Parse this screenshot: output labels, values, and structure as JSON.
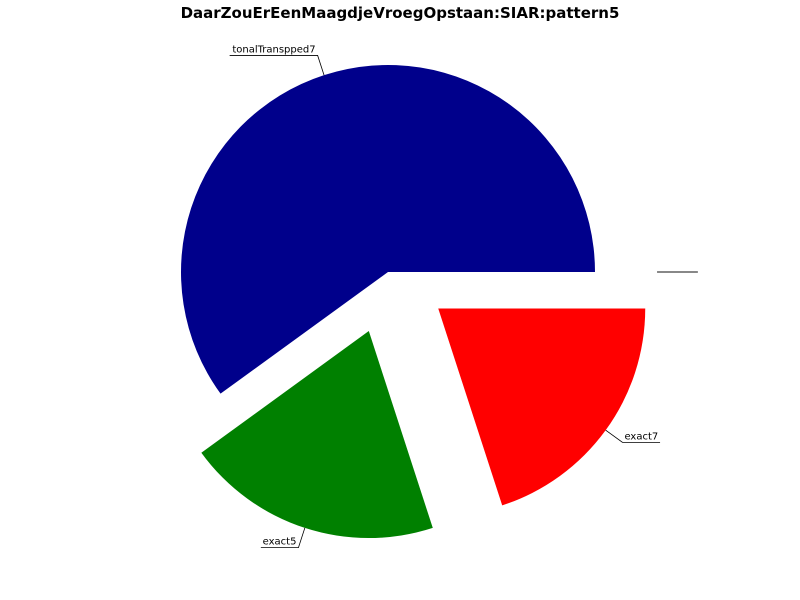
{
  "chart_data": {
    "type": "pie",
    "title": "DaarZouErEenMaagdjeVroegOpstaan:SIAR:pattern5",
    "slices": [
      {
        "label": "tonalTranspped7",
        "value": 60,
        "color": "#00008b"
      },
      {
        "label": "exact5",
        "value": 20,
        "color": "#008000"
      },
      {
        "label": "exact7",
        "value": 20,
        "color": "#ff0000"
      },
      {
        "label": "",
        "value": 0,
        "color": "#000000"
      },
      {
        "label": "",
        "value": 0,
        "color": "#000000"
      }
    ],
    "explode": [
      0,
      0.3,
      0.3,
      0.3,
      0.3
    ],
    "start_angle_deg": 0,
    "direction": "counterclockwise"
  }
}
